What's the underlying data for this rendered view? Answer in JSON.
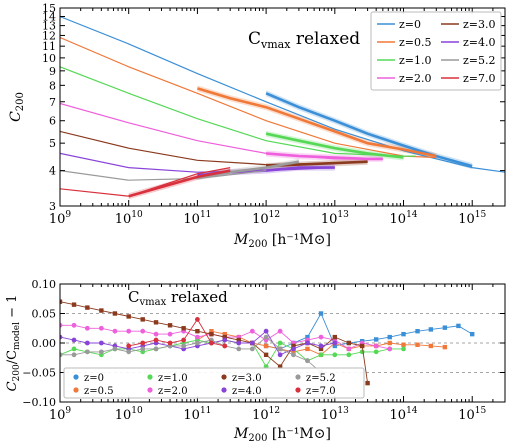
{
  "chart_data": [
    {
      "type": "line",
      "annotation": "C_vmax relaxed",
      "annotation_main": "C",
      "annotation_sub": "vmax",
      "annotation_rest": " relaxed",
      "xlabel_main": "M",
      "xlabel_sub": "200",
      "xlabel_unit": " [h⁻¹M⊙]",
      "ylabel_main": "C",
      "ylabel_sub": "200",
      "xscale": "log",
      "yscale": "log",
      "xlim": [
        1000000000.0,
        3000000000000000.0
      ],
      "ylim": [
        3,
        15
      ],
      "xticks": [
        1000000000.0,
        10000000000.0,
        100000000000.0,
        1000000000000.0,
        10000000000000.0,
        100000000000000.0,
        1000000000000000.0
      ],
      "xtick_labels": [
        {
          "base": "10",
          "exp": "9"
        },
        {
          "base": "10",
          "exp": "10"
        },
        {
          "base": "10",
          "exp": "11"
        },
        {
          "base": "10",
          "exp": "12"
        },
        {
          "base": "10",
          "exp": "13"
        },
        {
          "base": "10",
          "exp": "14"
        },
        {
          "base": "10",
          "exp": "15"
        }
      ],
      "yticks": [
        3,
        4,
        5,
        6,
        7,
        8,
        9,
        10,
        11,
        12,
        13,
        14,
        15
      ],
      "ytick_labels": [
        "3",
        "4",
        "5",
        "6",
        "7",
        "8",
        "9",
        "10",
        "11",
        "12",
        "13",
        "14",
        "15"
      ],
      "legend_position": "top-right",
      "series": [
        {
          "name": "z=0",
          "color": "#3b8fd6",
          "model_x": [
            1000000000.0,
            10000000000.0,
            100000000000.0,
            1000000000000.0,
            10000000000000.0,
            100000000000000.0,
            1000000000000000.0,
            3000000000000000.0
          ],
          "model_y": [
            14.0,
            11.2,
            8.8,
            7.0,
            5.6,
            4.7,
            4.1,
            3.95
          ],
          "sim_x": [
            1000000000000.0,
            3000000000000.0,
            10000000000000.0,
            30000000000000.0,
            100000000000000.0,
            300000000000000.0,
            1000000000000000.0
          ],
          "sim_y": [
            7.5,
            6.7,
            6.0,
            5.4,
            4.9,
            4.5,
            4.15
          ]
        },
        {
          "name": "z=0.5",
          "color": "#f07838",
          "model_x": [
            1000000000.0,
            10000000000.0,
            100000000000.0,
            1000000000000.0,
            10000000000000.0,
            100000000000000.0,
            300000000000000.0
          ],
          "model_y": [
            11.8,
            9.3,
            7.5,
            6.0,
            5.0,
            4.5,
            4.45
          ],
          "sim_x": [
            100000000000.0,
            300000000000.0,
            1000000000000.0,
            3000000000000.0,
            10000000000000.0,
            30000000000000.0,
            100000000000000.0,
            300000000000000.0
          ],
          "sim_y": [
            7.8,
            7.2,
            6.7,
            6.1,
            5.5,
            5.0,
            4.75,
            4.5
          ]
        },
        {
          "name": "z=1.0",
          "color": "#56d856",
          "model_x": [
            1000000000.0,
            10000000000.0,
            100000000000.0,
            1000000000000.0,
            10000000000000.0,
            100000000000000.0,
            150000000000000.0
          ],
          "model_y": [
            9.3,
            7.5,
            6.1,
            5.1,
            4.6,
            4.5,
            4.5
          ],
          "sim_x": [
            1000000000000.0,
            3000000000000.0,
            10000000000000.0,
            30000000000000.0,
            100000000000000.0
          ],
          "sim_y": [
            5.4,
            5.1,
            4.8,
            4.6,
            4.45
          ]
        },
        {
          "name": "z=2.0",
          "color": "#ee60dc",
          "model_x": [
            1000000000.0,
            10000000000.0,
            100000000000.0,
            1000000000000.0,
            10000000000000.0,
            50000000000000.0
          ],
          "model_y": [
            6.9,
            5.9,
            5.1,
            4.6,
            4.4,
            4.4
          ],
          "sim_x": [
            1000000000000.0,
            3000000000000.0,
            10000000000000.0,
            30000000000000.0,
            50000000000000.0
          ],
          "sim_y": [
            4.6,
            4.5,
            4.45,
            4.4,
            4.4
          ]
        },
        {
          "name": "z=3.0",
          "color": "#8b3a1e",
          "model_x": [
            1000000000.0,
            10000000000.0,
            100000000000.0,
            1000000000000.0,
            10000000000000.0,
            30000000000000.0
          ],
          "model_y": [
            5.5,
            4.8,
            4.35,
            4.2,
            4.25,
            4.3
          ],
          "sim_x": [
            1000000000000.0,
            3000000000000.0,
            10000000000000.0,
            30000000000000.0
          ],
          "sim_y": [
            4.15,
            4.2,
            4.25,
            4.3
          ]
        },
        {
          "name": "z=4.0",
          "color": "#8844d8",
          "model_x": [
            1000000000.0,
            10000000000.0,
            100000000000.0,
            1000000000000.0,
            10000000000000.0
          ],
          "model_y": [
            4.6,
            4.1,
            3.95,
            4.0,
            4.1
          ],
          "sim_x": [
            100000000000.0,
            300000000000.0,
            1000000000000.0,
            3000000000000.0,
            10000000000000.0
          ],
          "sim_y": [
            3.85,
            3.95,
            4.0,
            4.1,
            4.1
          ]
        },
        {
          "name": "z=5.2",
          "color": "#9a9a9a",
          "model_x": [
            1000000000.0,
            10000000000.0,
            100000000000.0,
            1000000000000.0
          ],
          "model_y": [
            4.0,
            3.7,
            3.75,
            4.0
          ],
          "sim_x": [
            100000000000.0,
            300000000000.0,
            1000000000000.0,
            3000000000000.0
          ],
          "sim_y": [
            3.8,
            3.95,
            4.1,
            4.3
          ]
        },
        {
          "name": "z=7.0",
          "color": "#d8303c",
          "model_x": [
            1000000000.0,
            10000000000.0,
            100000000000.0,
            300000000000.0
          ],
          "model_y": [
            3.45,
            3.25,
            3.9,
            4.1
          ],
          "sim_x": [
            10000000000.0,
            30000000000.0,
            100000000000.0,
            300000000000.0
          ],
          "sim_y": [
            3.25,
            3.5,
            3.8,
            4.0
          ]
        }
      ]
    },
    {
      "type": "line",
      "annotation": "C_vmax relaxed",
      "annotation_main": "C",
      "annotation_sub": "vmax",
      "annotation_rest": " relaxed",
      "xlabel_main": "M",
      "xlabel_sub": "200",
      "xlabel_unit": " [h⁻¹M⊙]",
      "ylabel_a": "C",
      "ylabel_a_sub": "200",
      "ylabel_b": "/C",
      "ylabel_b_sub": "model",
      "ylabel_c": " − 1",
      "xscale": "log",
      "xlim": [
        1000000000.0,
        3000000000000000.0
      ],
      "ylim": [
        -0.1,
        0.1
      ],
      "xticks": [
        1000000000.0,
        10000000000.0,
        100000000000.0,
        1000000000000.0,
        10000000000000.0,
        100000000000000.0,
        1000000000000000.0
      ],
      "xtick_labels": [
        {
          "base": "10",
          "exp": "9"
        },
        {
          "base": "10",
          "exp": "10"
        },
        {
          "base": "10",
          "exp": "11"
        },
        {
          "base": "10",
          "exp": "12"
        },
        {
          "base": "10",
          "exp": "13"
        },
        {
          "base": "10",
          "exp": "14"
        },
        {
          "base": "10",
          "exp": "15"
        }
      ],
      "yticks": [
        -0.1,
        -0.05,
        0.0,
        0.05,
        0.1
      ],
      "ytick_labels": [
        "−0.10",
        "−0.05",
        "0.00",
        "0.05",
        "0.10"
      ],
      "reference_lines_y": [
        -0.05,
        0.0,
        0.05
      ],
      "legend_position": "bottom-left",
      "series": [
        {
          "name": "z=0",
          "color": "#3b8fd6",
          "marker": "square",
          "x": [
            1000000000000.0,
            1600000000000.0,
            2500000000000.0,
            4000000000000.0,
            6300000000000.0,
            10000000000000.0,
            16000000000000.0,
            25000000000000.0,
            40000000000000.0,
            63000000000000.0,
            100000000000000.0,
            160000000000000.0,
            250000000000000.0,
            400000000000000.0,
            630000000000000.0,
            1000000000000000.0
          ],
          "y": [
            -0.005,
            -0.01,
            0.0,
            0.01,
            0.05,
            -0.005,
            0.0,
            0.003,
            0.006,
            0.01,
            0.015,
            0.02,
            0.023,
            0.026,
            0.029,
            0.015
          ]
        },
        {
          "name": "z=0.5",
          "color": "#f07838",
          "marker": "square",
          "x": [
            100000000000.0,
            160000000000.0,
            250000000000.0,
            400000000000.0,
            630000000000.0,
            1000000000000.0,
            1600000000000.0,
            2500000000000.0,
            4000000000000.0,
            6300000000000.0,
            10000000000000.0,
            16000000000000.0,
            25000000000000.0,
            40000000000000.0,
            63000000000000.0,
            100000000000000.0,
            160000000000000.0,
            250000000000000.0,
            400000000000000.0
          ],
          "y": [
            0.005,
            0.02,
            0.015,
            0.01,
            0.0,
            -0.005,
            -0.01,
            -0.015,
            -0.01,
            -0.02,
            0.0,
            -0.01,
            -0.005,
            -0.005,
            0.0,
            -0.003,
            -0.003,
            -0.005,
            -0.007
          ]
        },
        {
          "name": "z=1.0",
          "color": "#56d856",
          "marker": "square",
          "x": [
            1000000000.0,
            1600000000.0,
            2500000000.0,
            4000000000.0,
            6300000000.0,
            10000000000.0,
            16000000000.0,
            25000000000.0,
            40000000000.0,
            63000000000.0,
            100000000000.0,
            160000000000.0,
            250000000000.0,
            400000000000.0,
            630000000000.0,
            1000000000000.0,
            1600000000000.0,
            2500000000000.0,
            4000000000000.0,
            6300000000000.0,
            10000000000000.0,
            16000000000000.0,
            25000000000000.0,
            40000000000000.0,
            63000000000000.0,
            100000000000000.0
          ],
          "y": [
            -0.02,
            -0.01,
            -0.015,
            -0.02,
            -0.01,
            -0.01,
            -0.015,
            -0.01,
            -0.005,
            0.0,
            0.005,
            0.0,
            0.005,
            0.0,
            0.0,
            -0.04,
            0.0,
            -0.01,
            -0.03,
            -0.02,
            -0.02,
            -0.02,
            -0.015,
            -0.015,
            -0.01,
            -0.01
          ]
        },
        {
          "name": "z=2.0",
          "color": "#ee60dc",
          "marker": "square",
          "x": [
            1000000000.0,
            1600000000.0,
            2500000000.0,
            4000000000.0,
            6300000000.0,
            10000000000.0,
            16000000000.0,
            25000000000.0,
            40000000000.0,
            63000000000.0,
            100000000000.0,
            160000000000.0,
            250000000000.0,
            400000000000.0,
            630000000000.0,
            1000000000000.0,
            1600000000000.0,
            2500000000000.0,
            4000000000000.0,
            6300000000000.0,
            10000000000000.0,
            16000000000000.0,
            25000000000000.0,
            40000000000000.0,
            63000000000000.0
          ],
          "y": [
            0.03,
            0.03,
            0.025,
            0.025,
            0.02,
            0.02,
            0.02,
            0.015,
            0.015,
            0.02,
            0.01,
            0.015,
            0.01,
            0.01,
            0.02,
            0.005,
            0.02,
            0.0,
            0.005,
            0.01,
            0.005,
            -0.01,
            0.0,
            -0.005,
            -0.01
          ]
        },
        {
          "name": "z=3.0",
          "color": "#8b3a1e",
          "marker": "square",
          "x": [
            1000000000.0,
            1600000000.0,
            2500000000.0,
            4000000000.0,
            6300000000.0,
            10000000000.0,
            16000000000.0,
            25000000000.0,
            40000000000.0,
            63000000000.0,
            100000000000.0,
            160000000000.0,
            250000000000.0,
            400000000000.0,
            630000000000.0,
            1000000000000.0,
            1600000000000.0,
            2500000000000.0,
            4000000000000.0,
            6300000000000.0,
            10000000000000.0,
            16000000000000.0,
            25000000000000.0,
            30000000000000.0
          ],
          "y": [
            0.07,
            0.065,
            0.06,
            0.055,
            0.05,
            0.045,
            0.04,
            0.035,
            0.03,
            0.025,
            0.02,
            0.015,
            0.01,
            0.005,
            0.0,
            -0.02,
            -0.04,
            -0.005,
            0.0,
            -0.01,
            0.01,
            0.0,
            -0.005,
            -0.068
          ]
        },
        {
          "name": "z=4.0",
          "color": "#8844d8",
          "marker": "square",
          "x": [
            1000000000.0,
            1600000000.0,
            2500000000.0,
            4000000000.0,
            6300000000.0,
            10000000000.0,
            16000000000.0,
            25000000000.0,
            40000000000.0,
            63000000000.0,
            100000000000.0,
            160000000000.0,
            250000000000.0,
            400000000000.0,
            630000000000.0,
            1000000000000.0,
            1600000000000.0,
            2500000000000.0,
            4000000000000.0,
            6300000000000.0,
            10000000000000.0
          ],
          "y": [
            0.01,
            0.005,
            0.0,
            0.0,
            -0.005,
            -0.01,
            -0.005,
            0.0,
            -0.005,
            -0.01,
            -0.005,
            0.0,
            0.005,
            0.0,
            0.0,
            0.02,
            -0.02,
            -0.01,
            0.0,
            -0.005,
            0.0
          ]
        },
        {
          "name": "z=5.2",
          "color": "#9a9a9a",
          "marker": "square",
          "x": [
            1000000000.0,
            1600000000.0,
            2500000000.0,
            4000000000.0,
            6300000000.0,
            10000000000.0,
            16000000000.0,
            25000000000.0,
            40000000000.0,
            63000000000.0,
            100000000000.0,
            160000000000.0,
            250000000000.0,
            400000000000.0,
            630000000000.0,
            1000000000000.0,
            1600000000000.0,
            2500000000000.0,
            4000000000000.0,
            6300000000000.0
          ],
          "y": [
            -0.02,
            -0.02,
            -0.015,
            -0.015,
            -0.01,
            -0.015,
            -0.01,
            -0.01,
            -0.005,
            -0.005,
            0.0,
            0.005,
            -0.005,
            -0.01,
            -0.01,
            0.01,
            -0.01,
            -0.02,
            -0.03,
            -0.05
          ]
        },
        {
          "name": "z=7.0",
          "color": "#d8303c",
          "marker": "square",
          "x": [
            10000000000.0,
            16000000000.0,
            25000000000.0,
            40000000000.0,
            63000000000.0,
            100000000000.0,
            160000000000.0,
            250000000000.0
          ],
          "y": [
            -0.005,
            0.0,
            0.005,
            0.0,
            0.005,
            0.04,
            0.0,
            -0.005
          ]
        }
      ]
    }
  ]
}
